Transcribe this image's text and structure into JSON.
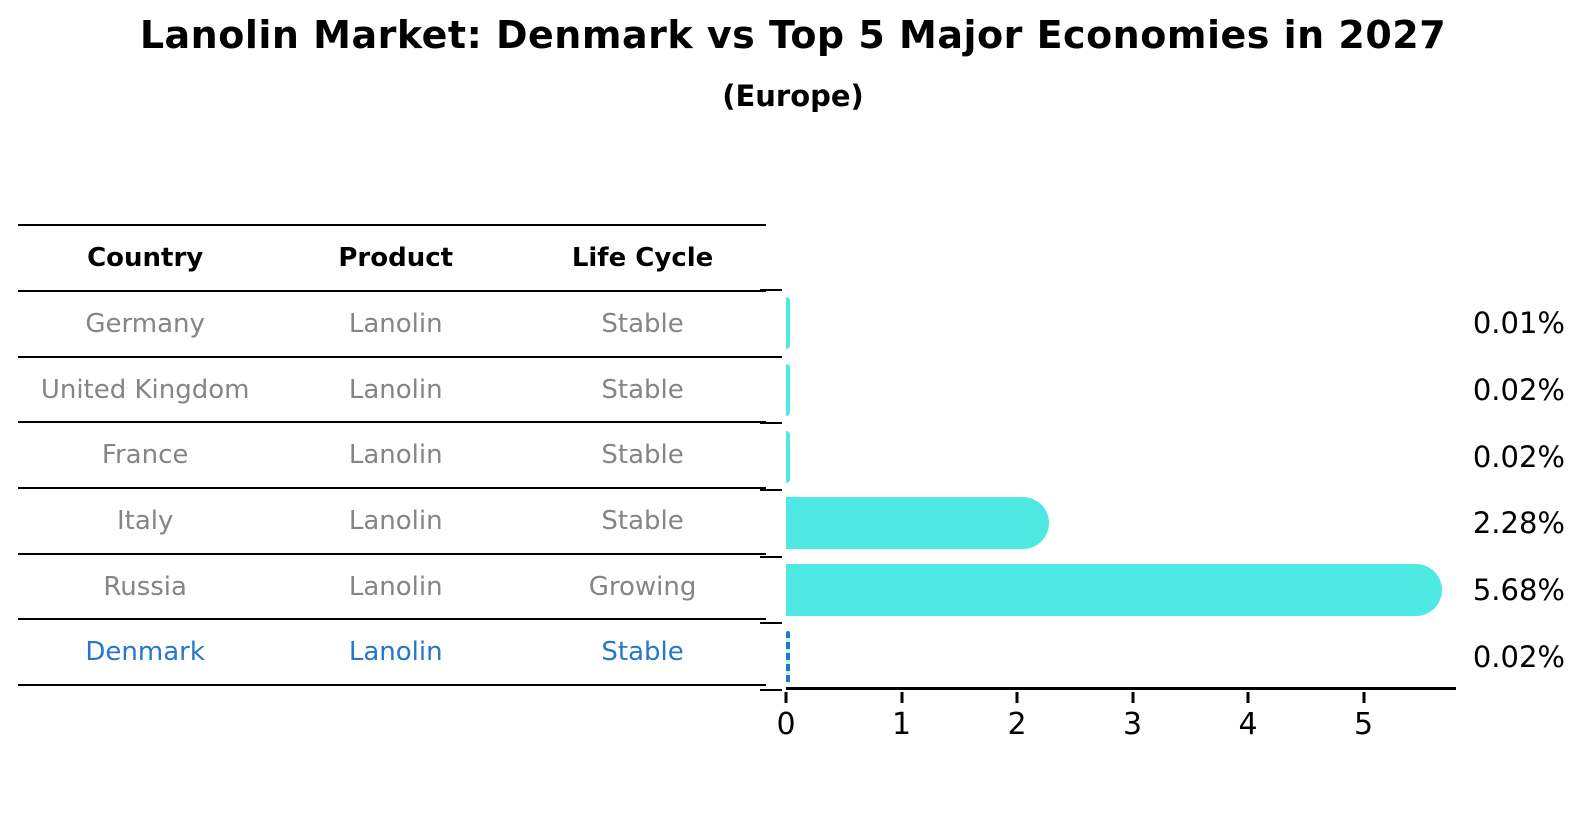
{
  "header": {
    "title": "Lanolin Market: Denmark vs Top 5 Major Economies in 2027",
    "subtitle": "(Europe)"
  },
  "table": {
    "columns": [
      "Country",
      "Product",
      "Life Cycle"
    ],
    "rows": [
      {
        "country": "Germany",
        "product": "Lanolin",
        "life_cycle": "Stable",
        "highlighted": false
      },
      {
        "country": "United Kingdom",
        "product": "Lanolin",
        "life_cycle": "Stable",
        "highlighted": false
      },
      {
        "country": "France",
        "product": "Lanolin",
        "life_cycle": "Stable",
        "highlighted": false
      },
      {
        "country": "Italy",
        "product": "Lanolin",
        "life_cycle": "Stable",
        "highlighted": false
      },
      {
        "country": "Russia",
        "product": "Lanolin",
        "life_cycle": "Growing",
        "highlighted": false
      },
      {
        "country": "Denmark",
        "product": "Lanolin",
        "life_cycle": "Stable",
        "highlighted": true
      }
    ]
  },
  "chart_data": {
    "type": "bar",
    "orientation": "horizontal",
    "title": "Lanolin Market: Denmark vs Top 5 Major Economies in 2027",
    "subtitle": "(Europe)",
    "categories": [
      "Germany",
      "United Kingdom",
      "France",
      "Italy",
      "Russia",
      "Denmark"
    ],
    "values": [
      0.01,
      0.02,
      0.02,
      2.28,
      5.68,
      0.02
    ],
    "value_labels": [
      "0.01%",
      "0.02%",
      "0.02%",
      "2.28%",
      "5.68%",
      "0.02%"
    ],
    "unit": "%",
    "xlabel": "",
    "ylabel": "",
    "xlim": [
      0,
      5.8
    ],
    "x_ticks": [
      0,
      1,
      2,
      3,
      4,
      5
    ],
    "grid": false,
    "legend": false,
    "bar_color": "#4de9e2",
    "highlight_color": "#2577cd",
    "highlight_index": 5,
    "highlight_style": "dashed"
  }
}
